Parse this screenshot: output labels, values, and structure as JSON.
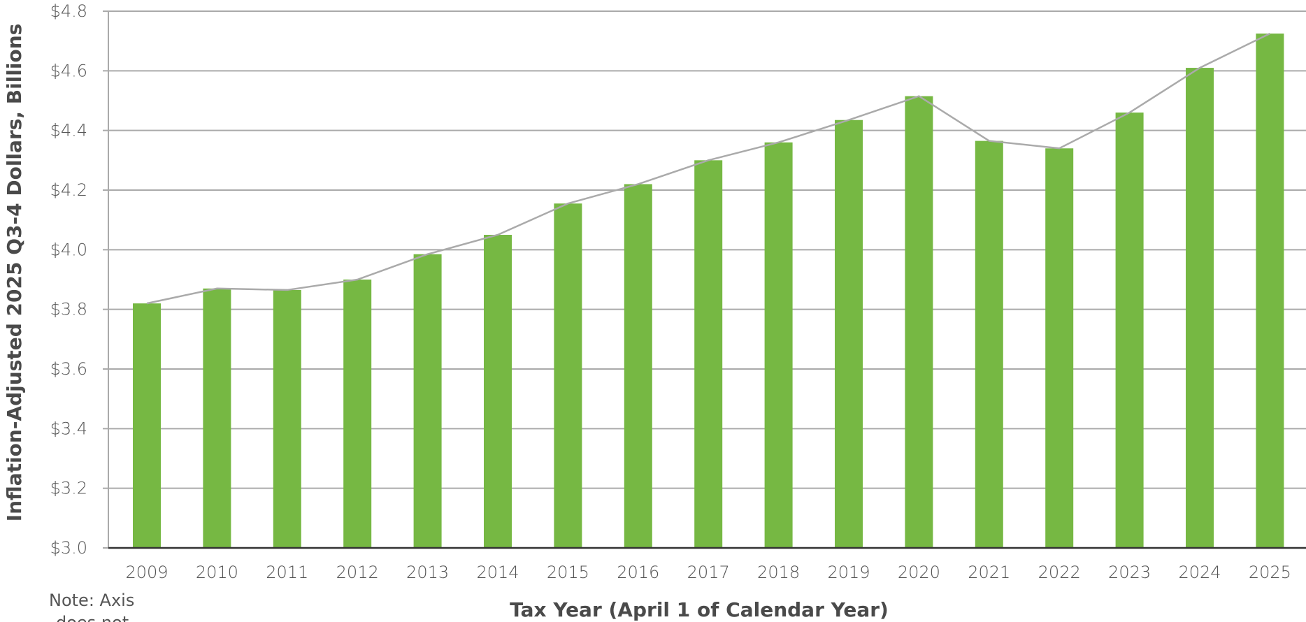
{
  "chart_data": {
    "type": "bar",
    "xlabel": "Tax Year (April 1 of Calendar Year)",
    "ylabel": "Inflation-Adjusted 2025 Q3-4 Dollars, Billions",
    "categories": [
      "2009",
      "2010",
      "2011",
      "2012",
      "2013",
      "2014",
      "2015",
      "2016",
      "2017",
      "2018",
      "2019",
      "2020",
      "2021",
      "2022",
      "2023",
      "2024",
      "2025"
    ],
    "values": [
      3.82,
      3.87,
      3.865,
      3.9,
      3.985,
      4.05,
      4.155,
      4.22,
      4.3,
      4.36,
      4.435,
      4.515,
      4.365,
      4.34,
      4.46,
      4.61,
      4.725
    ],
    "ylim": [
      3.0,
      4.8
    ],
    "yticks": [
      3.0,
      3.2,
      3.4,
      3.6,
      3.8,
      4.0,
      4.2,
      4.4,
      4.6,
      4.8
    ],
    "ytick_labels": [
      "$3.0",
      "$3.2",
      "$3.4",
      "$3.6",
      "$3.8",
      "$4.0",
      "$4.2",
      "$4.4",
      "$4.6",
      "$4.8"
    ],
    "grid": true,
    "trend_line": true,
    "note": "Note: Axis does not",
    "colors": {
      "bar": "#76b843",
      "line": "#aaaaaa",
      "grid": "#aaaaaa",
      "axis": "#333333"
    }
  }
}
